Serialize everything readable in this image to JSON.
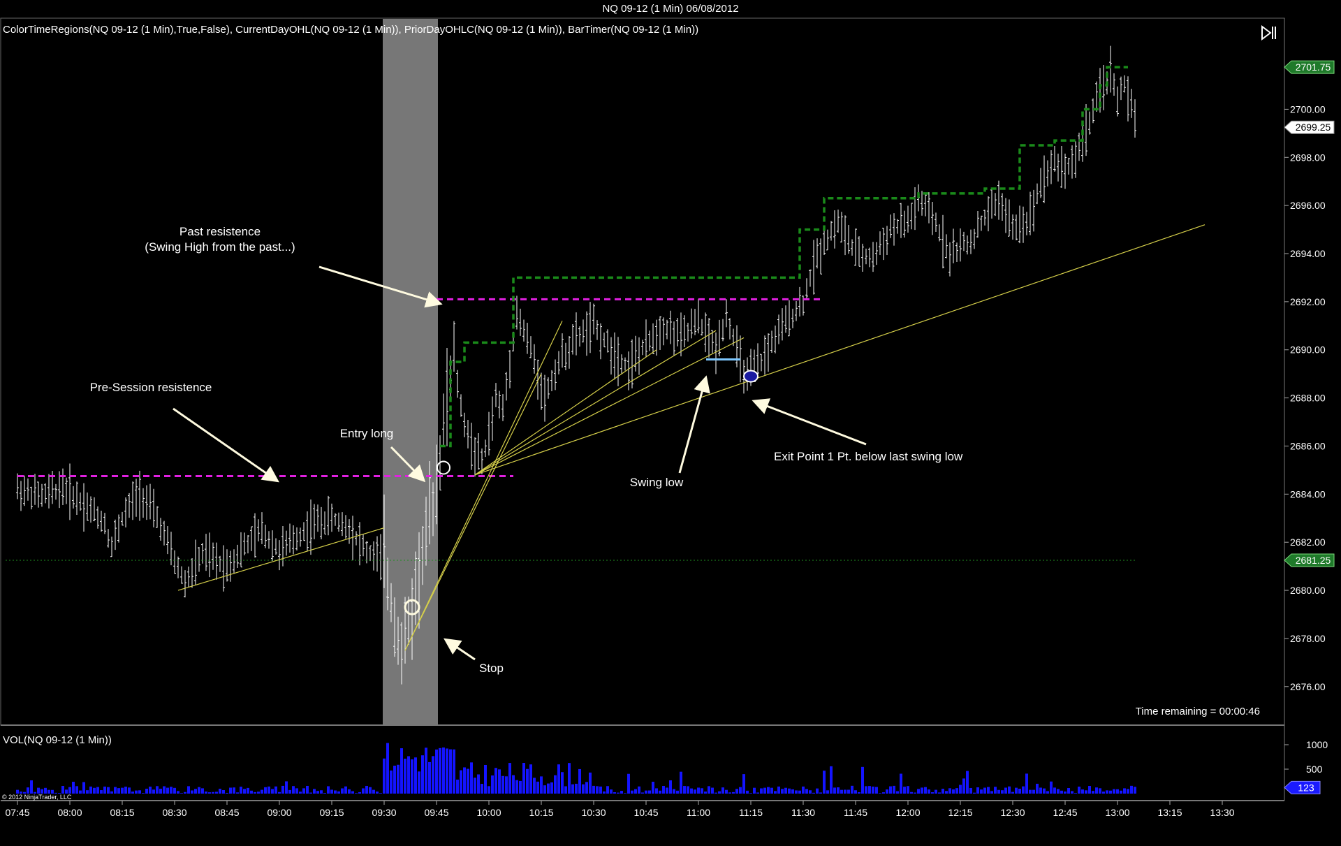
{
  "window": {
    "title": "NQ 09-12 (1 Min)  06/08/2012"
  },
  "indicators_label": "ColorTimeRegions(NQ 09-12 (1 Min),True,False), CurrentDayOHL(NQ 09-12 (1 Min)), PriorDayOHLC(NQ 09-12 (1 Min)), BarTimer(NQ 09-12 (1 Min))",
  "volume_label": "VOL(NQ 09-12 (1 Min))",
  "copyright": "© 2012 NinjaTrader, LLC",
  "time_remaining": "Time remaining = 00:00:46",
  "colors": {
    "background": "#000000",
    "bars": "#ffffff",
    "session_region": "#777777",
    "current_day_high": "#1a8a1a",
    "resistance": "#e020e0",
    "trend_lines": "#d6d04a",
    "prior_close": "#1f8f1f",
    "volume": "#1414ff",
    "swing_low_marker": "#7ec8ff"
  },
  "chart_data": {
    "type": "ohlc-bar",
    "instrument": "NQ 09-12 (1 Min)",
    "date": "06/08/2012",
    "x_ticks": [
      "07:45",
      "08:00",
      "08:15",
      "08:30",
      "08:45",
      "09:00",
      "09:15",
      "09:30",
      "09:45",
      "10:00",
      "10:15",
      "10:30",
      "10:45",
      "11:00",
      "11:15",
      "11:30",
      "11:45",
      "12:00",
      "12:15",
      "12:30",
      "12:45",
      "13:00",
      "13:15",
      "13:30"
    ],
    "xlim": [
      "07:45",
      "13:35"
    ],
    "ylim": [
      2675.5,
      2702.8
    ],
    "y_ticks": [
      2676,
      2678,
      2680,
      2682,
      2684,
      2686,
      2688,
      2690,
      2692,
      2694,
      2696,
      2698,
      2700
    ],
    "y_tick_labels": [
      "2676.00",
      "2678.00",
      "2680.00",
      "2682.00",
      "2684.00",
      "2686.00",
      "2688.00",
      "2690.00",
      "2692.00",
      "2694.00",
      "2696.00",
      "2698.00",
      "2700.00"
    ],
    "price_path": [
      [
        "07:45",
        2684.2
      ],
      [
        "07:52",
        2683.9
      ],
      [
        "07:58",
        2684.3
      ],
      [
        "08:05",
        2683.5
      ],
      [
        "08:10",
        2682.8
      ],
      [
        "08:12",
        2681.8
      ],
      [
        "08:15",
        2683.0
      ],
      [
        "08:20",
        2684.1
      ],
      [
        "08:25",
        2683.0
      ],
      [
        "08:30",
        2681.2
      ],
      [
        "08:33",
        2680.3
      ],
      [
        "08:38",
        2681.5
      ],
      [
        "08:45",
        2681.0
      ],
      [
        "08:50",
        2681.8
      ],
      [
        "08:55",
        2682.5
      ],
      [
        "09:00",
        2681.6
      ],
      [
        "09:05",
        2682.2
      ],
      [
        "09:10",
        2682.8
      ],
      [
        "09:15",
        2683.0
      ],
      [
        "09:20",
        2682.6
      ],
      [
        "09:25",
        2681.6
      ],
      [
        "09:30",
        2681.3
      ],
      [
        "09:32",
        2679.5
      ],
      [
        "09:35",
        2677.5
      ],
      [
        "09:37",
        2678.5
      ],
      [
        "09:40",
        2680.8
      ],
      [
        "09:43",
        2683.0
      ],
      [
        "09:45",
        2684.5
      ],
      [
        "09:48",
        2688.0
      ],
      [
        "09:50",
        2689.8
      ],
      [
        "09:52",
        2687.5
      ],
      [
        "09:55",
        2686.0
      ],
      [
        "09:58",
        2685.3
      ],
      [
        "10:00",
        2686.5
      ],
      [
        "10:02",
        2688.0
      ],
      [
        "10:04",
        2687.5
      ],
      [
        "10:06",
        2689.5
      ],
      [
        "10:08",
        2691.5
      ],
      [
        "10:12",
        2690.0
      ],
      [
        "10:16",
        2688.0
      ],
      [
        "10:20",
        2689.5
      ],
      [
        "10:25",
        2690.5
      ],
      [
        "10:30",
        2691.0
      ],
      [
        "10:35",
        2690.0
      ],
      [
        "10:40",
        2689.3
      ],
      [
        "10:45",
        2690.2
      ],
      [
        "10:50",
        2691.0
      ],
      [
        "10:55",
        2690.5
      ],
      [
        "11:00",
        2691.2
      ],
      [
        "11:05",
        2690.0
      ],
      [
        "11:08",
        2691.5
      ],
      [
        "11:12",
        2689.5
      ],
      [
        "11:14",
        2688.8
      ],
      [
        "11:18",
        2689.5
      ],
      [
        "11:22",
        2690.5
      ],
      [
        "11:26",
        2691.3
      ],
      [
        "11:30",
        2692.0
      ],
      [
        "11:33",
        2693.5
      ],
      [
        "11:36",
        2694.5
      ],
      [
        "11:40",
        2695.3
      ],
      [
        "11:45",
        2694.0
      ],
      [
        "11:50",
        2693.8
      ],
      [
        "11:55",
        2695.0
      ],
      [
        "12:00",
        2695.3
      ],
      [
        "12:03",
        2696.2
      ],
      [
        "12:07",
        2695.5
      ],
      [
        "12:12",
        2694.0
      ],
      [
        "12:18",
        2694.5
      ],
      [
        "12:22",
        2695.5
      ],
      [
        "12:26",
        2696.3
      ],
      [
        "12:30",
        2695.0
      ],
      [
        "12:35",
        2695.5
      ],
      [
        "12:38",
        2697.0
      ],
      [
        "12:42",
        2697.8
      ],
      [
        "12:45",
        2697.5
      ],
      [
        "12:48",
        2698.0
      ],
      [
        "12:52",
        2699.5
      ],
      [
        "12:56",
        2701.0
      ],
      [
        "12:58",
        2701.5
      ],
      [
        "13:00",
        2700.5
      ],
      [
        "13:02",
        2701.0
      ],
      [
        "13:05",
        2699.5
      ]
    ],
    "current_day_high_steps": [
      [
        "09:46",
        2686.0
      ],
      [
        "09:49",
        2689.5
      ],
      [
        "09:53",
        2690.3
      ],
      [
        "10:07",
        2693.0
      ],
      [
        "11:29",
        2695.0
      ],
      [
        "11:36",
        2696.3
      ],
      [
        "12:00",
        2696.3
      ],
      [
        "12:03",
        2696.5
      ],
      [
        "12:22",
        2696.7
      ],
      [
        "12:32",
        2698.5
      ],
      [
        "12:42",
        2698.7
      ],
      [
        "12:50",
        2700.0
      ],
      [
        "12:55",
        2701.0
      ],
      [
        "12:57",
        2701.75
      ],
      [
        "13:03",
        2701.75
      ]
    ],
    "resistance_levels": [
      {
        "price": 2684.75,
        "from": "07:45",
        "to": "10:07"
      },
      {
        "price": 2692.1,
        "from": "09:45",
        "to": "11:35"
      }
    ],
    "prior_close_level": 2681.25,
    "trend_lines": [
      [
        [
          "08:31",
          2680.0
        ],
        [
          "09:30",
          2682.6
        ]
      ],
      [
        [
          "09:36",
          2677.5
        ],
        [
          "10:21",
          2691.2
        ]
      ],
      [
        [
          "09:36",
          2677.5
        ],
        [
          "10:15",
          2689.0
        ]
      ],
      [
        [
          "09:56",
          2684.8
        ],
        [
          "10:48",
          2690.0
        ]
      ],
      [
        [
          "09:56",
          2684.8
        ],
        [
          "11:05",
          2690.8
        ]
      ],
      [
        [
          "09:56",
          2684.8
        ],
        [
          "11:13",
          2690.5
        ]
      ],
      [
        [
          "09:56",
          2684.8
        ],
        [
          "13:25",
          2695.2
        ]
      ]
    ],
    "session_region": [
      "09:30",
      "09:45"
    ],
    "price_markers": [
      {
        "label": "2701.75",
        "price": 2701.75,
        "style": "green"
      },
      {
        "label": "2699.25",
        "price": 2699.25,
        "style": "white"
      },
      {
        "label": "2681.25",
        "price": 2681.25,
        "style": "green"
      }
    ],
    "volume": {
      "yticks": [
        1000,
        500
      ],
      "ytick_labels": [
        "1000",
        "500"
      ],
      "ylim": [
        0,
        1300
      ],
      "current": 123,
      "current_label": "123"
    },
    "annotations": {
      "past_resistance": [
        "Past resistence",
        "(Swing High from the past...)"
      ],
      "pre_session": "Pre-Session resistence",
      "entry": "Entry long",
      "stop": "Stop",
      "swing_low": "Swing low",
      "exit": "Exit Point 1 Pt. below last swing low"
    }
  }
}
